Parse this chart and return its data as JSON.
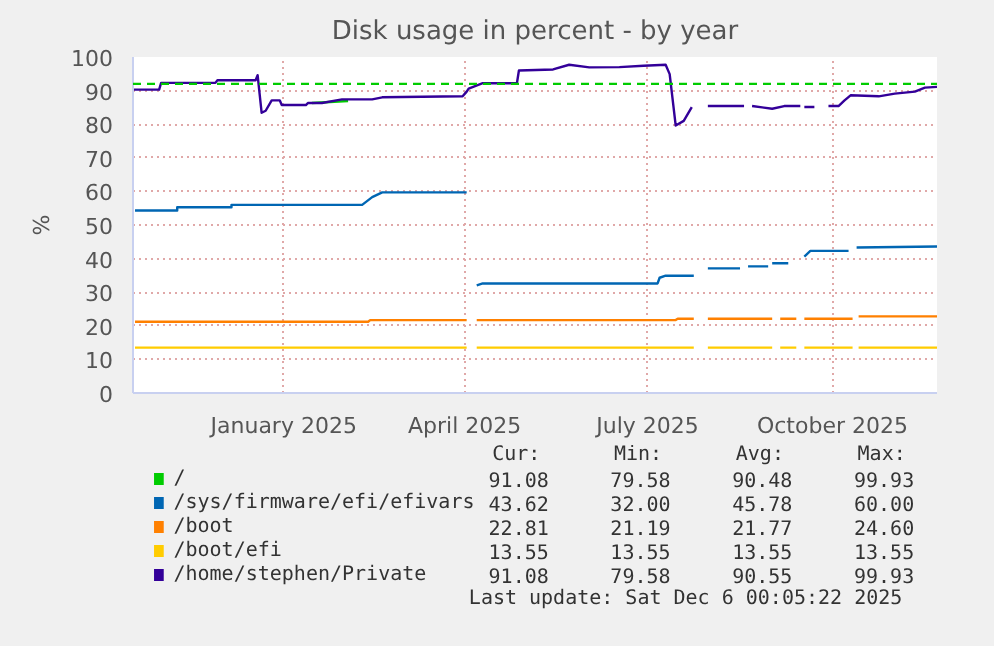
{
  "chart_data": {
    "type": "line",
    "title": "Disk usage in percent - by year",
    "ylabel": "%",
    "xlim": [
      "2024-11-01",
      "2025-12-06"
    ],
    "ylim": [
      0,
      100
    ],
    "yticks": [
      0,
      10,
      20,
      30,
      40,
      50,
      60,
      70,
      80,
      90,
      100
    ],
    "xticks": [
      {
        "value": "2025-01-15",
        "label": "January 2025"
      },
      {
        "value": "2025-04-15",
        "label": "April 2025"
      },
      {
        "value": "2025-07-15",
        "label": "July 2025"
      },
      {
        "value": "2025-10-15",
        "label": "October 2025"
      }
    ],
    "grid": true,
    "legend": "bottom",
    "line_style": "solid",
    "ref_lines": [
      {
        "axis": "y",
        "value": 92,
        "color": "#00cc00",
        "line_style": "dashed"
      }
    ],
    "series": [
      {
        "name": "/",
        "color": "#00cc00",
        "x": [
          "2025-01-29",
          "2025-02-16"
        ],
        "values": [
          86.3,
          86.9
        ]
      },
      {
        "name": "/sys/firmware/efi/efivars",
        "color": "#0066b3",
        "x": [
          "2024-11-02",
          "2024-11-23",
          "2024-11-23",
          "2024-12-20",
          "2024-12-20",
          "2025-02-23",
          "2025-02-28",
          "2025-03-05",
          "2025-04-16",
          "2025-04-18",
          "2025-04-21",
          "2025-04-24",
          "2025-07-20",
          "2025-07-21",
          "2025-07-24",
          "2025-08-07",
          "2025-08-10",
          "2025-08-14",
          "2025-08-30",
          "2025-09-01",
          "2025-09-03",
          "2025-09-13",
          "2025-09-14",
          "2025-09-15",
          "2025-09-23",
          "2025-09-27",
          "2025-10-01",
          "2025-10-04",
          "2025-10-23",
          "2025-10-25",
          "2025-10-27",
          "2025-12-06"
        ],
        "values": [
          54.3,
          54.3,
          55.3,
          55.3,
          56,
          56,
          58.3,
          59.7,
          59.7,
          null,
          32,
          32.6,
          32.6,
          34.3,
          34.9,
          34.9,
          null,
          37.1,
          37.1,
          null,
          37.7,
          37.7,
          null,
          38.6,
          38.6,
          null,
          40.6,
          42.3,
          42.3,
          null,
          43.3,
          43.6
        ]
      },
      {
        "name": "/boot",
        "color": "#ff8000",
        "x": [
          "2024-11-02",
          "2025-02-26",
          "2025-02-27",
          "2025-04-16",
          "2025-04-18",
          "2025-04-21",
          "2025-07-29",
          "2025-07-30",
          "2025-08-07",
          "2025-08-10",
          "2025-08-14",
          "2025-09-15",
          "2025-09-17",
          "2025-09-19",
          "2025-09-27",
          "2025-09-29",
          "2025-10-01",
          "2025-10-25",
          "2025-10-26",
          "2025-10-28",
          "2025-12-06"
        ],
        "values": [
          21.2,
          21.2,
          21.7,
          21.7,
          null,
          21.7,
          21.7,
          22.1,
          22.1,
          null,
          22.1,
          22.1,
          null,
          22.1,
          22.1,
          null,
          22.1,
          22.1,
          null,
          22.8,
          22.8
        ]
      },
      {
        "name": "/boot/efi",
        "color": "#ffcc00",
        "x": [
          "2024-11-02",
          "2025-04-16",
          "2025-04-18",
          "2025-04-21",
          "2025-08-07",
          "2025-08-10",
          "2025-08-14",
          "2025-09-15",
          "2025-09-17",
          "2025-09-19",
          "2025-09-27",
          "2025-09-29",
          "2025-10-01",
          "2025-10-25",
          "2025-10-26",
          "2025-10-28",
          "2025-12-06"
        ],
        "values": [
          13.5,
          13.5,
          null,
          13.5,
          13.5,
          null,
          13.5,
          13.5,
          null,
          13.5,
          13.5,
          null,
          13.5,
          13.5,
          null,
          13.5,
          13.5
        ]
      },
      {
        "name": "/home/stephen/Private",
        "color": "#330099",
        "x": [
          "2024-11-01",
          "2024-11-14",
          "2024-11-15",
          "2024-12-12",
          "2024-12-13",
          "2025-01-01",
          "2025-01-02",
          "2025-01-04",
          "2025-01-06",
          "2025-01-09",
          "2025-01-13",
          "2025-01-14",
          "2025-01-26",
          "2025-01-27",
          "2025-02-03",
          "2025-02-13",
          "2025-02-28",
          "2025-03-05",
          "2025-04-14",
          "2025-04-16",
          "2025-04-17",
          "2025-04-24",
          "2025-05-11",
          "2025-05-12",
          "2025-05-29",
          "2025-06-06",
          "2025-06-16",
          "2025-07-01",
          "2025-07-13",
          "2025-07-24",
          "2025-07-26",
          "2025-07-29",
          "2025-08-02",
          "2025-08-06",
          "2025-08-10",
          "2025-08-14",
          "2025-09-01",
          "2025-09-03",
          "2025-09-05",
          "2025-09-15",
          "2025-09-21",
          "2025-09-29",
          "2025-09-30",
          "2025-10-01",
          "2025-10-06",
          "2025-10-10",
          "2025-10-13",
          "2025-10-18",
          "2025-10-21",
          "2025-10-24",
          "2025-11-07",
          "2025-11-15",
          "2025-11-25",
          "2025-11-30",
          "2025-12-06"
        ],
        "values": [
          90.3,
          90.3,
          92.3,
          92.3,
          93.1,
          93.1,
          94.6,
          83.4,
          84,
          87.1,
          87.1,
          85.7,
          85.7,
          86.3,
          86.3,
          87.4,
          87.4,
          88,
          88.3,
          89.7,
          90.6,
          92.2,
          92.2,
          96,
          96.3,
          97.7,
          96.9,
          97,
          97.4,
          97.7,
          94.9,
          79.6,
          81,
          85.1,
          null,
          85.4,
          85.4,
          null,
          85.4,
          84.6,
          85.4,
          85.4,
          null,
          85.1,
          85.1,
          null,
          85.4,
          85.4,
          87.1,
          88.6,
          88.3,
          89.1,
          89.7,
          90.9,
          91.1
        ]
      }
    ],
    "annotations": [
      "Cur:       Min:       Avg:       Max:",
      "91.08      79.58      90.48      99.93",
      "43.62      32.00      45.78      60.00",
      "22.81      21.19      21.77      24.60",
      "13.55      13.55      13.55      13.55",
      "91.08      79.58      90.55      99.93",
      "Last update: Sat Dec  6 00:05:22 2025"
    ]
  }
}
